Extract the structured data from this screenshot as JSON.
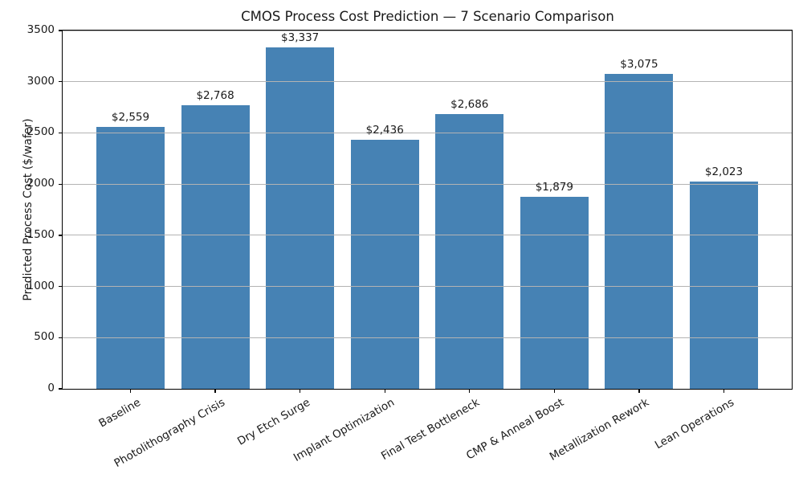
{
  "figure": {
    "background": "#ffffff"
  },
  "chart_data": {
    "type": "bar",
    "title": "CMOS Process Cost Prediction — 7 Scenario Comparison",
    "xlabel": "",
    "ylabel": "Predicted Process Cost ($/wafer)",
    "categories": [
      "Baseline",
      "Photolithography Crisis",
      "Dry Etch Surge",
      "Implant Optimization",
      "Final Test Bottleneck",
      "CMP & Anneal Boost",
      "Metallization Rework",
      "Lean Operations"
    ],
    "values": [
      2559,
      2768,
      3337,
      2436,
      2686,
      1879,
      3075,
      2023
    ],
    "bar_labels": [
      "$2,559",
      "$2,768",
      "$3,337",
      "$2,436",
      "$2,686",
      "$1,879",
      "$3,075",
      "$2,023"
    ],
    "ylim": [
      0,
      3500
    ],
    "yticks": [
      0,
      500,
      1000,
      1500,
      2000,
      2500,
      3000,
      3500
    ],
    "grid": "horizontal",
    "grid_above_bars": true,
    "legend": "none",
    "x_tick_rotation_deg": 30,
    "colors": {
      "bar": "#4682b4",
      "grid": "#b3b3b3",
      "spine": "#000000",
      "text": "#1a1a1a"
    }
  }
}
